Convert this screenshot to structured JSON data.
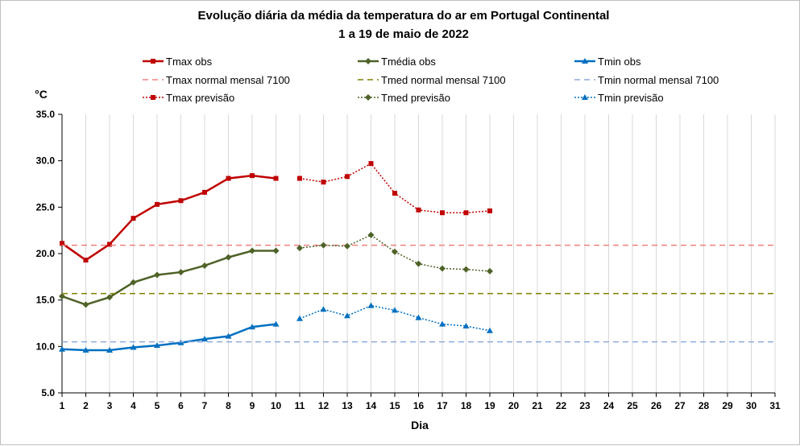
{
  "chart_data": {
    "type": "line",
    "title": "Evolução diária da média da temperatura do ar em Portugal Continental",
    "subtitle": "1 a 19 de maio de 2022",
    "xlabel": "Dia",
    "ylabel": "°C",
    "xlim": [
      1,
      31
    ],
    "ylim": [
      5,
      35
    ],
    "yticks": [
      "5.0",
      "10.0",
      "15.0",
      "20.0",
      "25.0",
      "30.0",
      "35.0"
    ],
    "xticks": [
      "1",
      "2",
      "3",
      "4",
      "5",
      "6",
      "7",
      "8",
      "9",
      "10",
      "11",
      "12",
      "13",
      "14",
      "15",
      "16",
      "17",
      "18",
      "19",
      "20",
      "21",
      "22",
      "23",
      "24",
      "25",
      "26",
      "27",
      "28",
      "29",
      "30",
      "31"
    ],
    "grid": "vertical",
    "legend_position": "top",
    "series": [
      {
        "name": "Tmax obs",
        "color": "#c00000",
        "style": "solid",
        "marker": "square",
        "x": [
          1,
          2,
          3,
          4,
          5,
          6,
          7,
          8,
          9,
          10
        ],
        "values": [
          21.1,
          19.3,
          21.0,
          23.8,
          25.3,
          25.7,
          26.6,
          28.1,
          28.4,
          28.1
        ]
      },
      {
        "name": "Tmédia obs",
        "color": "#4f6228",
        "style": "solid",
        "marker": "diamond",
        "x": [
          1,
          2,
          3,
          4,
          5,
          6,
          7,
          8,
          9,
          10
        ],
        "values": [
          15.4,
          14.5,
          15.3,
          16.9,
          17.7,
          18.0,
          18.7,
          19.6,
          20.3,
          20.3
        ]
      },
      {
        "name": "Tmin obs",
        "color": "#0070c0",
        "style": "solid",
        "marker": "triangle",
        "x": [
          1,
          2,
          3,
          4,
          5,
          6,
          7,
          8,
          9,
          10
        ],
        "values": [
          9.7,
          9.6,
          9.6,
          9.9,
          10.1,
          10.4,
          10.8,
          11.1,
          12.1,
          12.4
        ]
      },
      {
        "name": "Tmax normal mensal 7100",
        "color": "#f08080",
        "style": "dashed",
        "marker": "none",
        "x": [
          1,
          31
        ],
        "values": [
          20.9,
          20.9
        ]
      },
      {
        "name": "Tmed normal mensal 7100",
        "color": "#7f7f00",
        "style": "dashed",
        "marker": "none",
        "x": [
          1,
          31
        ],
        "values": [
          15.7,
          15.7
        ]
      },
      {
        "name": "Tmin normal mensal 7100",
        "color": "#8eaadb",
        "style": "dashed",
        "marker": "none",
        "x": [
          1,
          31
        ],
        "values": [
          10.5,
          10.5
        ]
      },
      {
        "name": "Tmax previsão",
        "color": "#c00000",
        "style": "dotted",
        "marker": "square",
        "x": [
          11,
          12,
          13,
          14,
          15,
          16,
          17,
          18,
          19
        ],
        "values": [
          28.1,
          27.7,
          28.3,
          29.7,
          26.5,
          24.7,
          24.4,
          24.4,
          24.6
        ]
      },
      {
        "name": "Tmed previsão",
        "color": "#4f6228",
        "style": "dotted",
        "marker": "diamond",
        "x": [
          11,
          12,
          13,
          14,
          15,
          16,
          17,
          18,
          19
        ],
        "values": [
          20.6,
          20.9,
          20.8,
          22.0,
          20.2,
          18.9,
          18.4,
          18.3,
          18.1
        ]
      },
      {
        "name": "Tmin previsão",
        "color": "#0070c0",
        "style": "dotted",
        "marker": "triangle",
        "x": [
          11,
          12,
          13,
          14,
          15,
          16,
          17,
          18,
          19
        ],
        "values": [
          13.0,
          14.0,
          13.3,
          14.4,
          13.9,
          13.1,
          12.4,
          12.2,
          11.7
        ]
      }
    ]
  }
}
